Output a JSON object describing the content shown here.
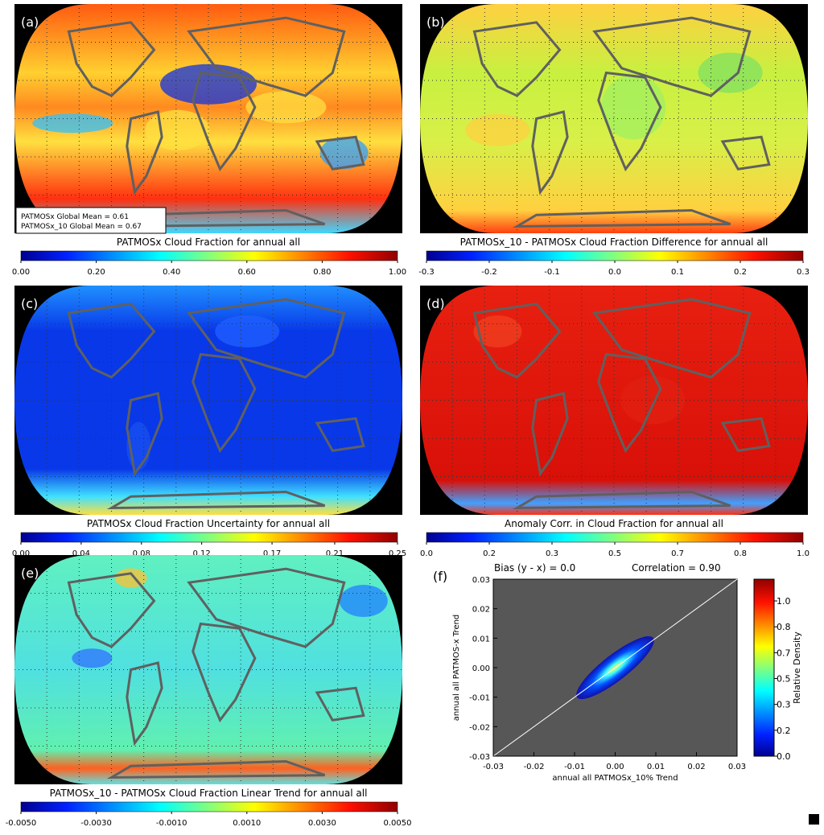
{
  "maps": [
    {
      "label": "(a)",
      "title": "PATMOSx Cloud Fraction for annual all",
      "legend": [
        "PATMOSx Global Mean =  0.61",
        "PATMOSx_10 Global Mean =  0.67"
      ],
      "clim": [
        0,
        1
      ],
      "cticks": [
        {
          "value": 0,
          "label": "0.00"
        },
        {
          "value": 0.2,
          "label": "0.20"
        },
        {
          "value": 0.4,
          "label": "0.40"
        },
        {
          "value": 0.6,
          "label": "0.60"
        },
        {
          "value": 0.8,
          "label": "0.80"
        },
        {
          "value": 1,
          "label": "1.00"
        }
      ]
    },
    {
      "label": "(b)",
      "title": "PATMOSx_10 - PATMOSx Cloud Fraction Difference for annual all",
      "clim": [
        -0.3,
        0.3
      ],
      "cticks": [
        -0.3,
        -0.2,
        -0.1,
        {
          "value": 0,
          "label": "0.0"
        },
        0.1,
        0.2,
        0.3
      ]
    },
    {
      "label": "(c)",
      "title": "PATMOSx Cloud Fraction Uncertainty for annual all",
      "clim": [
        0,
        0.25
      ],
      "cticks": [
        {
          "value": 0,
          "label": "0.00"
        },
        0.04,
        0.08,
        0.12,
        {
          "value": 0.1667,
          "label": "0.17"
        },
        {
          "value": 0.2083,
          "label": "0.21"
        },
        0.25
      ]
    },
    {
      "label": "(d)",
      "title": "Anomaly Corr. in Cloud Fraction for annual all",
      "clim": [
        0,
        1
      ],
      "cticks": [
        {
          "value": 0,
          "label": "0.0"
        },
        {
          "value": 0.1667,
          "label": "0.2"
        },
        {
          "value": 0.3333,
          "label": "0.3"
        },
        0.5,
        {
          "value": 0.6667,
          "label": "0.7"
        },
        {
          "value": 0.8333,
          "label": "0.8"
        },
        {
          "value": 1,
          "label": "1.0"
        }
      ]
    },
    {
      "label": "(e)",
      "title": "PATMOSx_10 - PATMOSx Cloud Fraction Linear Trend for annual all",
      "clim": [
        -0.005,
        0.005
      ],
      "cticks": [
        {
          "value": -0.005,
          "label": "-0.0050"
        },
        {
          "value": -0.003,
          "label": "-0.0030"
        },
        {
          "value": -0.001,
          "label": "-0.0010"
        },
        {
          "value": 0.001,
          "label": "0.0010"
        },
        {
          "value": 0.003,
          "label": "0.0030"
        },
        {
          "value": 0.005,
          "label": "0.0050"
        }
      ]
    }
  ],
  "chart_data": {
    "type": "scatter",
    "label": "(f)",
    "bias": "Bias (y - x) =  0.0",
    "correlation": "Correlation =    0.90",
    "xlabel": "annual all PATMOSx_10% Trend",
    "ylabel": "annual all PATMOS-x Trend",
    "xlim": [
      -0.03,
      0.03
    ],
    "ylim": [
      -0.03,
      0.03
    ],
    "xticks": [
      -0.03,
      -0.02,
      -0.01,
      {
        "value": 0,
        "label": "0.00"
      },
      0.01,
      0.02,
      0.03
    ],
    "yticks": [
      -0.03,
      -0.02,
      -0.01,
      {
        "value": 0,
        "label": "0.00"
      },
      0.01,
      0.02,
      0.03
    ],
    "colorbar": {
      "label": "Relative Density",
      "lim": [
        0,
        1.14
      ],
      "ticks": [
        {
          "value": 0,
          "label": "0.0"
        },
        {
          "value": 0.1667,
          "label": "0.2"
        },
        {
          "value": 0.3333,
          "label": "0.3"
        },
        0.5,
        {
          "value": 0.6667,
          "label": "0.7"
        },
        {
          "value": 0.8333,
          "label": "0.8"
        },
        {
          "value": 1,
          "label": "1.0"
        }
      ]
    }
  }
}
